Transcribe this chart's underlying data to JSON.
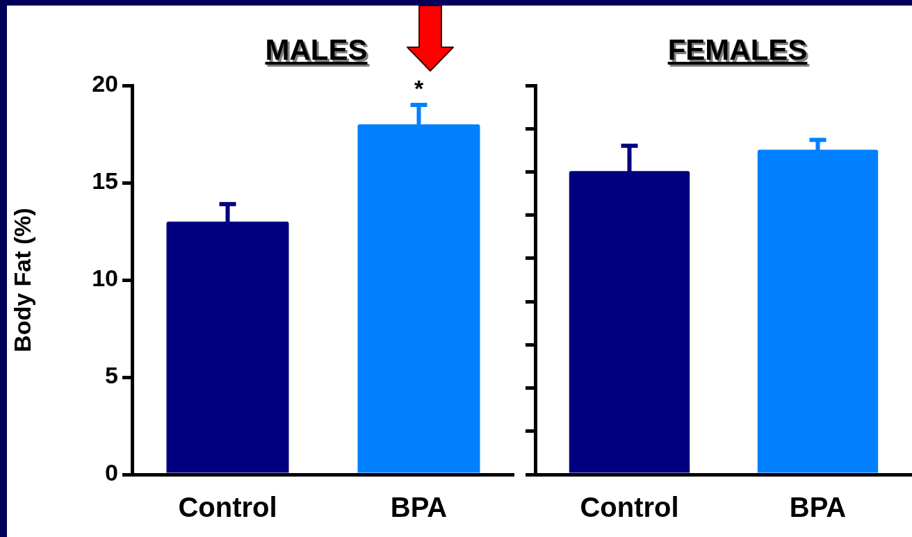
{
  "chart_data": [
    {
      "type": "bar",
      "title": "MALES",
      "ylabel": "Body Fat (%)",
      "categories": [
        "Control",
        "BPA"
      ],
      "values": [
        13.0,
        18.0
      ],
      "colors": [
        "#000080",
        "#0080ff"
      ],
      "errors": [
        0.9,
        1.0
      ],
      "ylim": [
        0,
        20
      ],
      "yticks": [
        0,
        5,
        10,
        15,
        20
      ],
      "annotations": [
        {
          "text": "*",
          "x": "BPA",
          "y": 19.0
        }
      ]
    },
    {
      "type": "bar",
      "title": "FEMALES",
      "categories": [
        "Control",
        "BPA"
      ],
      "values": [
        15.6,
        16.7
      ],
      "colors": [
        "#000080",
        "#0080ff"
      ],
      "errors": [
        1.3,
        0.5
      ],
      "ylim": [
        0,
        20
      ],
      "tick_labels": "x",
      "yticks": [
        {
          "value": 0,
          "label": null
        },
        {
          "value": 2.22,
          "label": null
        },
        {
          "value": 4.44,
          "label": null
        },
        {
          "value": 6.67,
          "label": null
        },
        {
          "value": 8.89,
          "label": null
        },
        {
          "value": 11.11,
          "label": null
        },
        {
          "value": 13.33,
          "label": null
        },
        {
          "value": 15.56,
          "label": null
        },
        {
          "value": 17.78,
          "label": null
        },
        {
          "value": 20,
          "label": null
        }
      ]
    }
  ]
}
